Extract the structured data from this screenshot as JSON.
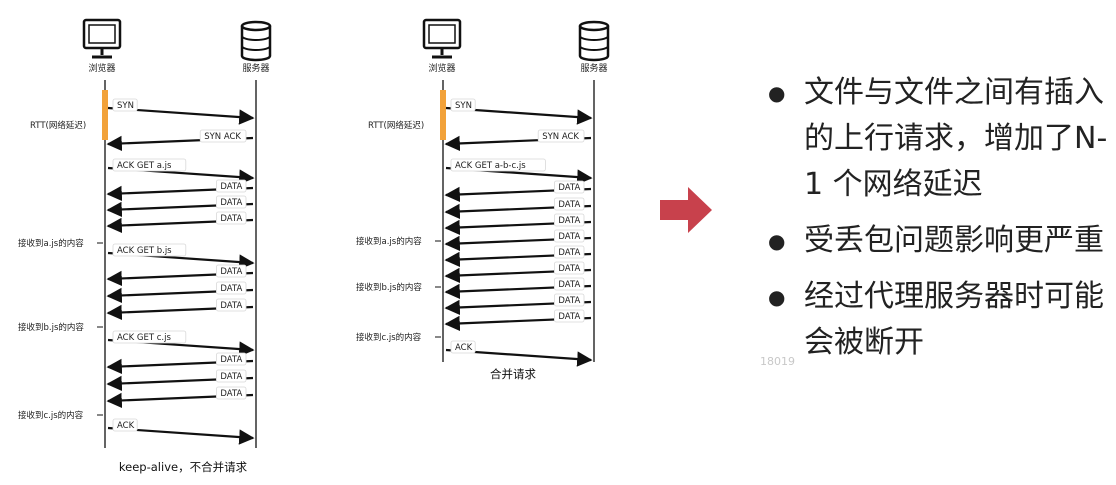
{
  "left_diagram": {
    "client_label": "浏览器",
    "server_label": "服务器",
    "rtt_label": "RTT(网络延迟)",
    "caption": "keep-alive，不合并请求",
    "arrows": [
      {
        "dir": "r",
        "text": "SYN"
      },
      {
        "dir": "l",
        "text": "SYN ACK"
      },
      {
        "dir": "r",
        "text": "ACK GET a.js"
      },
      {
        "dir": "l",
        "text": "DATA"
      },
      {
        "dir": "l",
        "text": "DATA"
      },
      {
        "dir": "l",
        "text": "DATA"
      },
      {
        "dir": "r",
        "text": "ACK GET b.js"
      },
      {
        "dir": "l",
        "text": "DATA"
      },
      {
        "dir": "l",
        "text": "DATA"
      },
      {
        "dir": "l",
        "text": "DATA"
      },
      {
        "dir": "r",
        "text": "ACK GET c.js"
      },
      {
        "dir": "l",
        "text": "DATA"
      },
      {
        "dir": "l",
        "text": "DATA"
      },
      {
        "dir": "l",
        "text": "DATA"
      },
      {
        "dir": "r",
        "text": "ACK"
      }
    ],
    "receive_labels": [
      "接收到a.js的内容",
      "接收到b.js的内容",
      "接收到c.js的内容"
    ]
  },
  "right_diagram": {
    "client_label": "浏览器",
    "server_label": "服务器",
    "rtt_label": "RTT(网络延迟)",
    "caption": "合并请求",
    "arrows": [
      {
        "dir": "r",
        "text": "SYN"
      },
      {
        "dir": "l",
        "text": "SYN ACK"
      },
      {
        "dir": "r",
        "text": "ACK GET a-b-c.js"
      },
      {
        "dir": "l",
        "text": "DATA"
      },
      {
        "dir": "l",
        "text": "DATA"
      },
      {
        "dir": "l",
        "text": "DATA"
      },
      {
        "dir": "l",
        "text": "DATA"
      },
      {
        "dir": "l",
        "text": "DATA"
      },
      {
        "dir": "l",
        "text": "DATA"
      },
      {
        "dir": "l",
        "text": "DATA"
      },
      {
        "dir": "l",
        "text": "DATA"
      },
      {
        "dir": "l",
        "text": "DATA"
      },
      {
        "dir": "r",
        "text": "ACK"
      }
    ],
    "receive_labels": [
      "接收到a.js的内容",
      "接收到b.js的内容",
      "接收到c.js的内容"
    ]
  },
  "bullets": [
    "文件与文件之间有插入的上行请求，增加了N-1 个网络延迟",
    "受丢包问题影响更严重",
    "经过代理服务器时可能会被断开"
  ],
  "watermark": "18019",
  "colors": {
    "rtt_bar": "#f2a23a",
    "next_arrow": "#c8414c",
    "line": "#111111"
  },
  "icons": {
    "client": "computer-monitor-icon",
    "server": "database-server-icon",
    "next": "right-arrow-icon"
  }
}
